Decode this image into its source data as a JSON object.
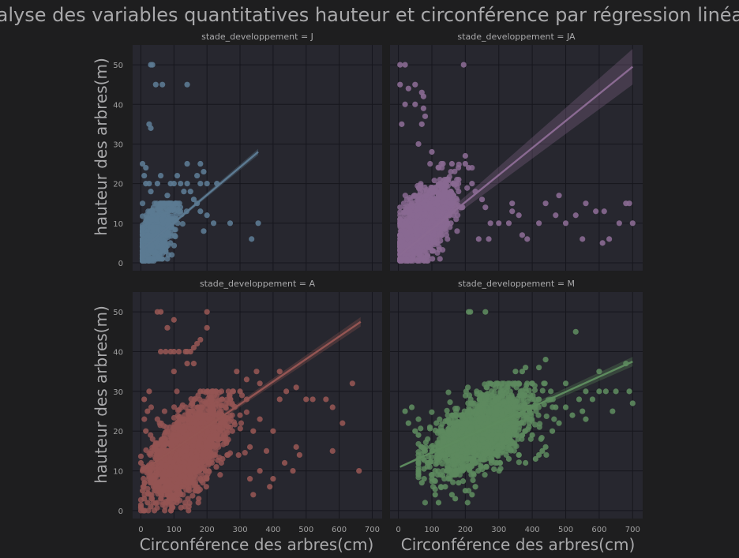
{
  "suptitle": "Analyse des variables quantitatives hauteur et circonférence par régression linéaire",
  "xlabel": "Circonférence des arbres(cm)",
  "ylabel": "hauteur des arbres(m)",
  "x_ticks": [
    0,
    100,
    200,
    300,
    400,
    500,
    600,
    700
  ],
  "y_ticks": [
    0,
    10,
    20,
    30,
    40,
    50
  ],
  "chart_data": [
    {
      "type": "scatter",
      "title": "stade_developpement = J",
      "color": "#5c7a92",
      "xlim": [
        -25,
        730
      ],
      "ylim": [
        -2,
        55
      ],
      "regression": {
        "x0": 5,
        "y0": 3.5,
        "x1": 355,
        "y1": 28,
        "ci_half_width_end": 0.8
      },
      "cluster": {
        "x_mean": 40,
        "x_sd": 30,
        "y_mean": 7,
        "y_sd": 4,
        "x_range": [
          5,
          160
        ],
        "y_range": [
          0.5,
          15
        ],
        "n": 800
      },
      "points": [
        [
          30,
          50
        ],
        [
          35,
          50
        ],
        [
          45,
          45
        ],
        [
          65,
          45
        ],
        [
          140,
          45
        ],
        [
          25,
          35
        ],
        [
          30,
          34
        ],
        [
          5,
          25
        ],
        [
          15,
          24
        ],
        [
          10,
          22
        ],
        [
          15,
          20
        ],
        [
          25,
          20
        ],
        [
          50,
          20
        ],
        [
          90,
          20
        ],
        [
          100,
          20
        ],
        [
          120,
          20
        ],
        [
          140,
          20
        ],
        [
          180,
          20
        ],
        [
          200,
          20
        ],
        [
          230,
          20
        ],
        [
          140,
          25
        ],
        [
          180,
          25
        ],
        [
          170,
          22
        ],
        [
          190,
          23
        ],
        [
          130,
          18
        ],
        [
          150,
          18
        ],
        [
          160,
          16
        ],
        [
          170,
          15
        ],
        [
          180,
          13
        ],
        [
          200,
          12
        ],
        [
          220,
          10
        ],
        [
          190,
          8
        ],
        [
          270,
          10
        ],
        [
          335,
          6
        ],
        [
          355,
          10
        ],
        [
          110,
          22
        ],
        [
          60,
          22
        ],
        [
          30,
          18
        ],
        [
          80,
          17
        ]
      ]
    },
    {
      "type": "scatter",
      "title": "stade_developpement = JA",
      "color": "#8a6a92",
      "xlim": [
        -25,
        730
      ],
      "ylim": [
        -2,
        55
      ],
      "regression": {
        "x0": 5,
        "y0": 2,
        "x1": 700,
        "y1": 49.5,
        "ci_half_width_end": 4.5
      },
      "cluster": {
        "x_mean": 80,
        "x_sd": 40,
        "y_mean": 10,
        "y_sd": 5,
        "x_range": [
          5,
          220
        ],
        "y_range": [
          0.5,
          25
        ],
        "n": 1500
      },
      "points": [
        [
          5,
          50
        ],
        [
          20,
          50
        ],
        [
          195,
          50
        ],
        [
          5,
          45
        ],
        [
          50,
          45
        ],
        [
          30,
          44
        ],
        [
          70,
          43
        ],
        [
          75,
          42
        ],
        [
          20,
          40
        ],
        [
          50,
          40
        ],
        [
          75,
          39
        ],
        [
          80,
          37
        ],
        [
          10,
          35
        ],
        [
          70,
          35
        ],
        [
          60,
          30
        ],
        [
          100,
          28
        ],
        [
          160,
          25
        ],
        [
          200,
          25
        ],
        [
          210,
          24
        ],
        [
          220,
          20
        ],
        [
          230,
          18
        ],
        [
          250,
          16
        ],
        [
          260,
          14
        ],
        [
          275,
          10
        ],
        [
          300,
          10
        ],
        [
          240,
          6
        ],
        [
          270,
          6
        ],
        [
          330,
          10
        ],
        [
          340,
          13
        ],
        [
          340,
          15
        ],
        [
          360,
          12
        ],
        [
          370,
          7
        ],
        [
          385,
          6
        ],
        [
          420,
          10
        ],
        [
          440,
          15
        ],
        [
          470,
          12
        ],
        [
          480,
          17
        ],
        [
          500,
          10
        ],
        [
          530,
          12
        ],
        [
          550,
          6
        ],
        [
          560,
          15
        ],
        [
          590,
          13
        ],
        [
          615,
          13
        ],
        [
          630,
          6
        ],
        [
          660,
          10
        ],
        [
          680,
          15
        ],
        [
          690,
          15
        ],
        [
          700,
          10
        ],
        [
          610,
          5
        ],
        [
          200,
          27
        ]
      ]
    },
    {
      "type": "scatter",
      "title": "stade_developpement = A",
      "color": "#945553",
      "xlim": [
        -25,
        730
      ],
      "ylim": [
        -2,
        55
      ],
      "regression": {
        "x0": 5,
        "y0": 10,
        "x1": 665,
        "y1": 47.5,
        "ci_half_width_end": 1.2
      },
      "cluster": {
        "x_mean": 140,
        "x_sd": 55,
        "y_mean": 15,
        "y_sd": 6,
        "x_range": [
          0,
          320
        ],
        "y_range": [
          0,
          30
        ],
        "n": 2000
      },
      "points": [
        [
          50,
          50
        ],
        [
          60,
          50
        ],
        [
          200,
          50
        ],
        [
          100,
          48
        ],
        [
          80,
          46
        ],
        [
          200,
          46
        ],
        [
          60,
          40
        ],
        [
          75,
          40
        ],
        [
          90,
          40
        ],
        [
          100,
          40
        ],
        [
          115,
          40
        ],
        [
          135,
          40
        ],
        [
          140,
          40
        ],
        [
          150,
          40
        ],
        [
          160,
          41
        ],
        [
          170,
          42
        ],
        [
          180,
          43
        ],
        [
          160,
          37
        ],
        [
          140,
          37
        ],
        [
          100,
          35
        ],
        [
          290,
          35
        ],
        [
          320,
          33
        ],
        [
          350,
          35
        ],
        [
          360,
          32
        ],
        [
          420,
          35
        ],
        [
          470,
          31
        ],
        [
          500,
          28
        ],
        [
          520,
          28
        ],
        [
          560,
          28
        ],
        [
          580,
          26
        ],
        [
          610,
          22
        ],
        [
          640,
          32
        ],
        [
          660,
          10
        ],
        [
          580,
          15
        ],
        [
          480,
          14
        ],
        [
          470,
          16
        ],
        [
          460,
          10
        ],
        [
          435,
          12
        ],
        [
          400,
          20
        ],
        [
          400,
          8
        ],
        [
          390,
          6
        ],
        [
          340,
          4
        ],
        [
          360,
          10
        ],
        [
          380,
          15
        ],
        [
          330,
          16
        ],
        [
          340,
          20
        ],
        [
          360,
          23
        ],
        [
          420,
          28
        ],
        [
          440,
          30
        ],
        [
          330,
          8
        ],
        [
          320,
          28
        ],
        [
          300,
          30
        ],
        [
          180,
          30
        ],
        [
          5,
          10
        ],
        [
          0,
          12
        ],
        [
          5,
          5
        ],
        [
          10,
          3
        ],
        [
          20,
          2
        ],
        [
          30,
          1
        ],
        [
          15,
          20
        ],
        [
          20,
          25
        ],
        [
          10,
          28
        ],
        [
          25,
          30
        ]
      ]
    },
    {
      "type": "scatter",
      "title": "stade_developpement = M",
      "color": "#5d8a5e",
      "xlim": [
        -25,
        730
      ],
      "ylim": [
        -2,
        55
      ],
      "regression": {
        "x0": 5,
        "y0": 11,
        "x1": 700,
        "y1": 37.5,
        "ci_half_width_end": 1.2
      },
      "cluster": {
        "x_mean": 250,
        "x_sd": 75,
        "y_mean": 20,
        "y_sd": 5.5,
        "x_range": [
          60,
          500
        ],
        "y_range": [
          2,
          32
        ],
        "n": 1500
      },
      "points": [
        [
          210,
          50
        ],
        [
          215,
          50
        ],
        [
          260,
          50
        ],
        [
          530,
          45
        ],
        [
          440,
          38
        ],
        [
          380,
          36
        ],
        [
          420,
          36
        ],
        [
          600,
          35
        ],
        [
          350,
          35
        ],
        [
          370,
          35
        ],
        [
          360,
          32
        ],
        [
          500,
          32
        ],
        [
          540,
          28
        ],
        [
          560,
          30
        ],
        [
          580,
          28
        ],
        [
          600,
          30
        ],
        [
          620,
          30
        ],
        [
          650,
          30
        ],
        [
          680,
          37
        ],
        [
          700,
          27
        ],
        [
          690,
          30
        ],
        [
          640,
          25
        ],
        [
          560,
          23
        ],
        [
          550,
          25
        ],
        [
          520,
          24
        ],
        [
          470,
          26
        ],
        [
          500,
          26
        ],
        [
          480,
          22
        ],
        [
          460,
          20
        ],
        [
          440,
          16
        ],
        [
          430,
          15
        ],
        [
          420,
          14
        ],
        [
          410,
          13
        ],
        [
          400,
          19
        ],
        [
          380,
          12
        ],
        [
          360,
          14
        ],
        [
          330,
          13
        ],
        [
          20,
          25
        ],
        [
          30,
          22
        ],
        [
          40,
          26
        ],
        [
          50,
          20
        ],
        [
          60,
          19
        ],
        [
          70,
          16
        ],
        [
          80,
          15
        ],
        [
          90,
          12
        ],
        [
          100,
          8
        ],
        [
          110,
          4
        ],
        [
          120,
          2
        ],
        [
          140,
          6
        ],
        [
          160,
          4
        ],
        [
          170,
          3
        ],
        [
          180,
          7
        ],
        [
          200,
          5
        ],
        [
          220,
          4
        ],
        [
          230,
          6
        ],
        [
          60,
          13
        ],
        [
          60,
          9
        ],
        [
          70,
          7
        ]
      ]
    }
  ]
}
